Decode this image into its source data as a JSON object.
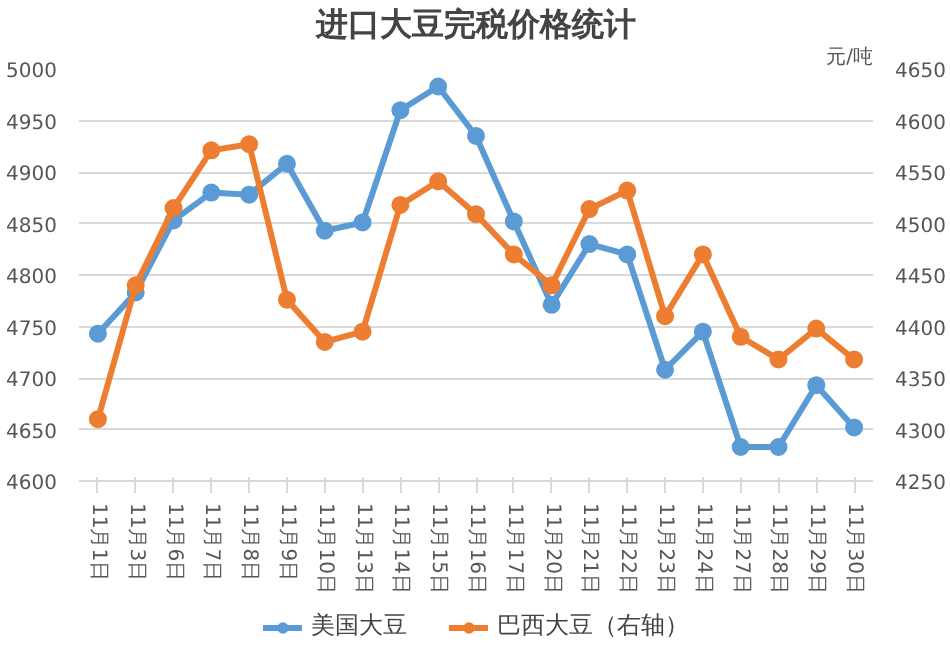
{
  "chart_data": {
    "type": "line",
    "title": "进口大豆完税价格统计",
    "y2label": "元/吨",
    "categories": [
      "11月1日",
      "11月3日",
      "11月6日",
      "11月7日",
      "11月8日",
      "11月9日",
      "11月10日",
      "11月13日",
      "11月14日",
      "11月15日",
      "11月16日",
      "11月17日",
      "11月20日",
      "11月21日",
      "11月22日",
      "11月23日",
      "11月24日",
      "11月27日",
      "11月28日",
      "11月29日",
      "11月30日"
    ],
    "series": [
      {
        "name": "美国大豆",
        "color": "#5b9bd5",
        "values": [
          4743,
          4783,
          4853,
          4880,
          4878,
          4908,
          4843,
          4851,
          4960,
          4983,
          4935,
          4852,
          4771,
          4830,
          4820,
          4708,
          4745,
          4633,
          4633,
          4693,
          4652
        ]
      },
      {
        "name": "巴西大豆（右轴）",
        "color": "#ed7d31",
        "axis": "y2",
        "values": [
          4310,
          4440,
          4515,
          4571,
          4577,
          4426,
          4385,
          4395,
          4518,
          4541,
          4509,
          4470,
          4440,
          4514,
          4532,
          4410,
          4470,
          4390,
          4368,
          4398,
          4368
        ]
      }
    ],
    "ylim": [
      4600,
      5000
    ],
    "yticks": [
      4600,
      4650,
      4700,
      4750,
      4800,
      4850,
      4900,
      4950,
      5000
    ],
    "y2lim": [
      4250,
      4650
    ],
    "y2ticks": [
      4250,
      4300,
      4350,
      4400,
      4450,
      4500,
      4550,
      4600,
      4650
    ],
    "grid": "y",
    "legend": "bottom",
    "marker": "circle",
    "line_style": "solid"
  }
}
